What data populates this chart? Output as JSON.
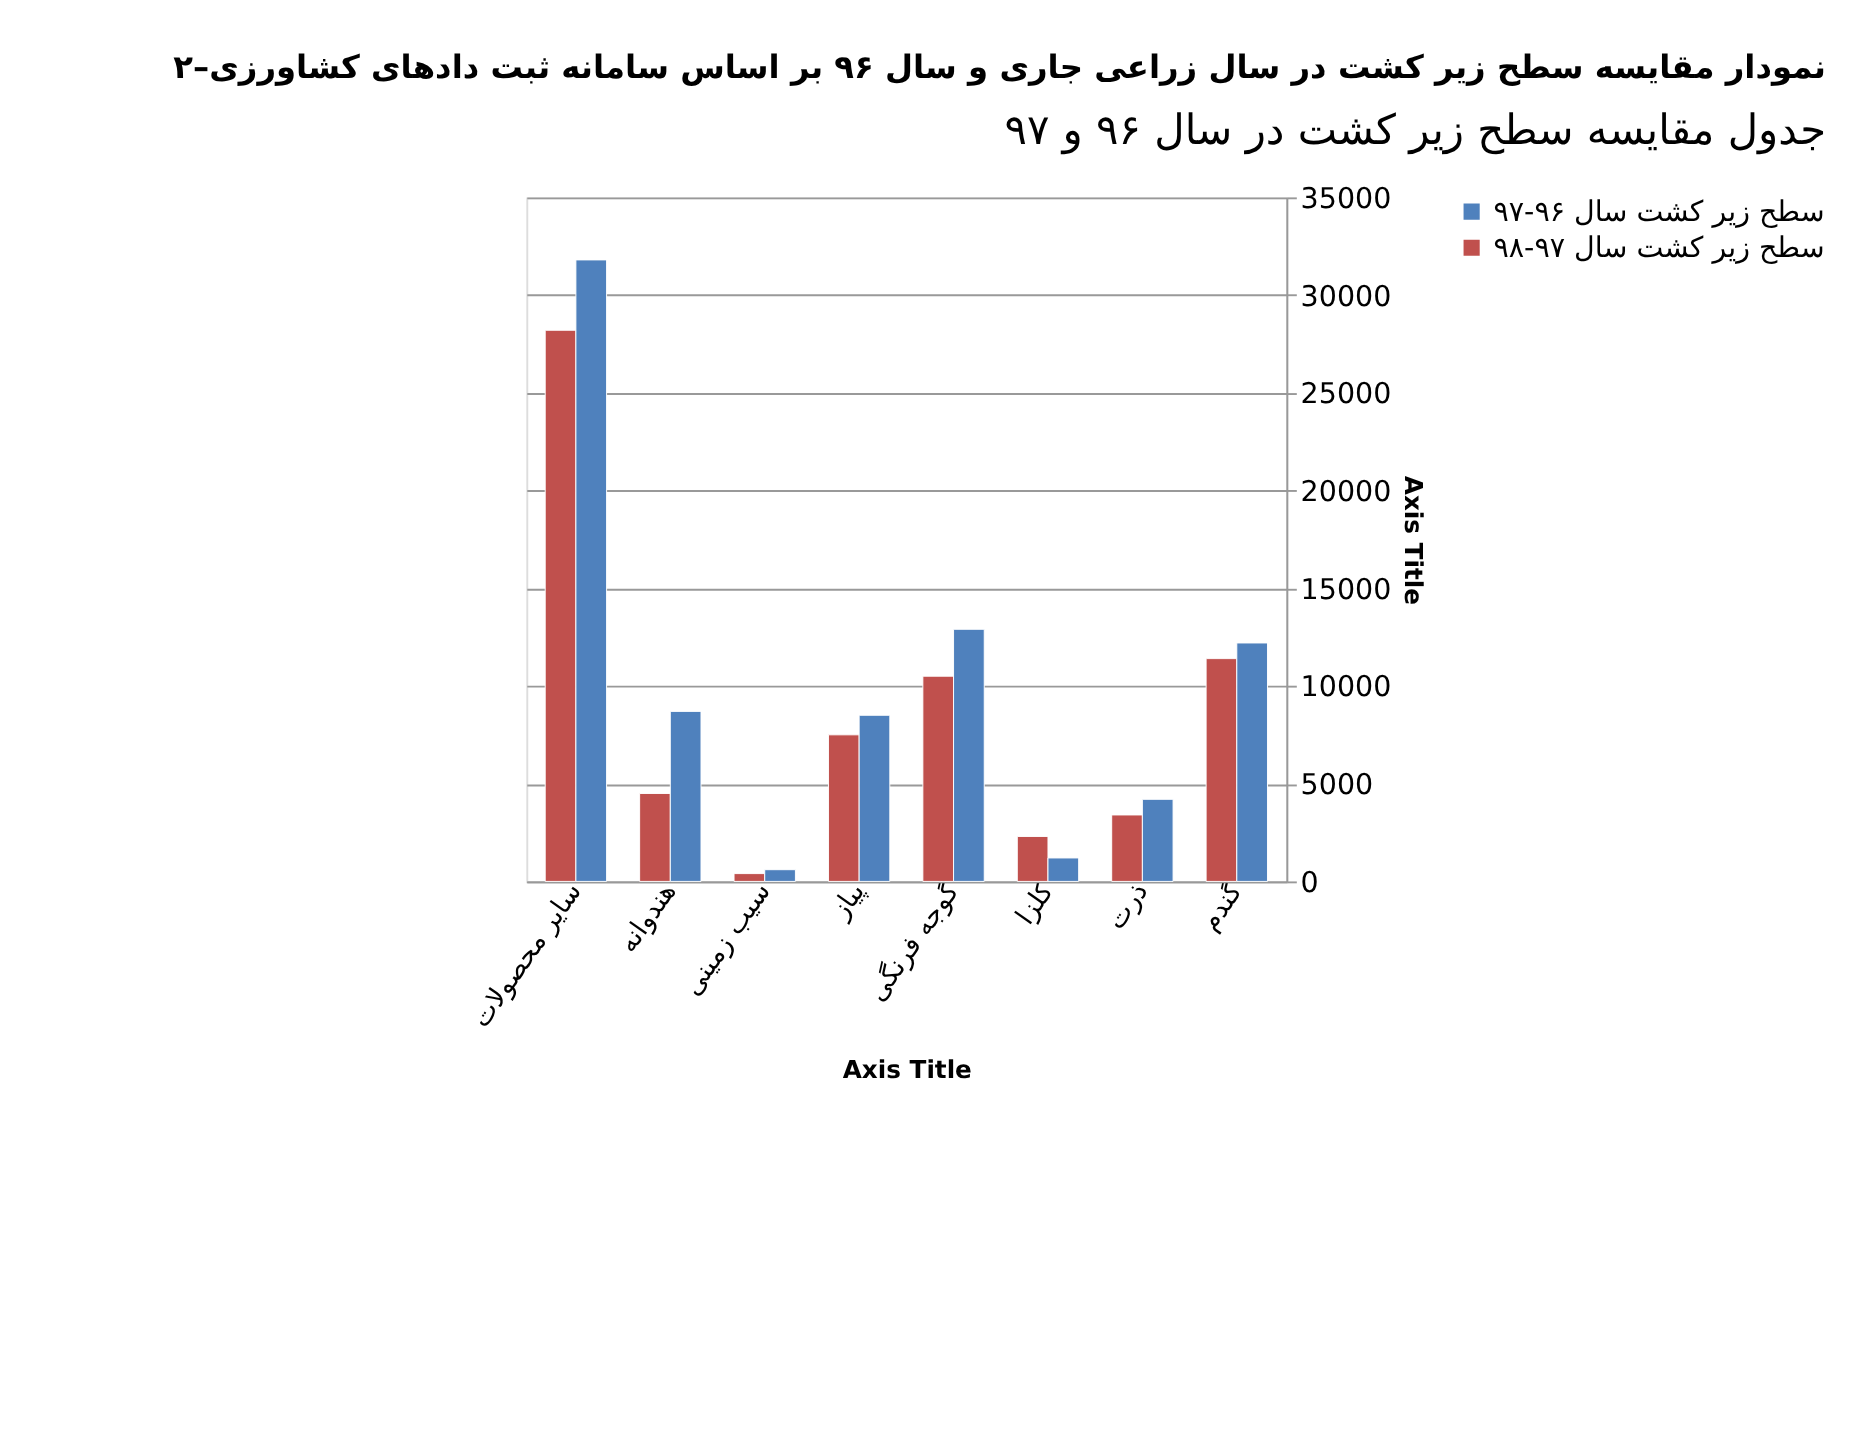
{
  "chart_data": {
    "type": "bar",
    "title": "۲–نمودار مقایسه سطح زیر کشت در سال زراعی جاری و سال ۹۶ بر اساس سامانه ثبت دادهای کشاورزی",
    "subtitle": "جدول مقایسه سطح زیر کشت در سال ۹۶ و ۹۷",
    "categories": [
      "سایر محصولات",
      "هندوانه",
      "سیب زمینی",
      "پیاز",
      "گوجه فرنگی",
      "کلزا",
      "ذرت",
      "گندم"
    ],
    "series": [
      {
        "name": "سطح زیر کشت سال ۹۷-۹۸",
        "color": "#c0504d",
        "values": [
          28200,
          4500,
          400,
          7500,
          10500,
          2300,
          3400,
          11400
        ]
      },
      {
        "name": "سطح زیر کشت سال ۹۶-۹۷",
        "color": "#4f81bd",
        "values": [
          31800,
          8700,
          600,
          8500,
          12900,
          1200,
          4200,
          12200
        ]
      }
    ],
    "xlabel": "Axis Title",
    "ylabel": "Axis Title",
    "ylim": [
      0,
      35000
    ],
    "yticks": [
      0,
      5000,
      10000,
      15000,
      20000,
      25000,
      30000,
      35000
    ],
    "grid": "y",
    "legend": "right"
  }
}
